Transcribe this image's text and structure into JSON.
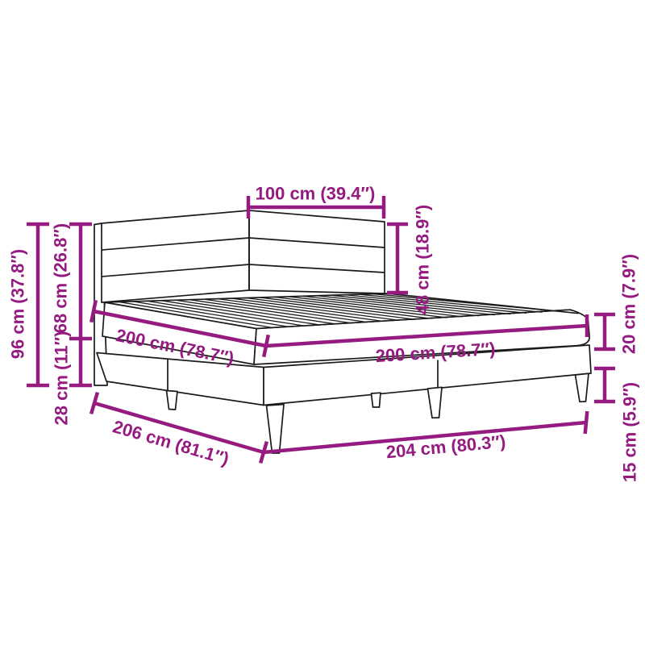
{
  "diagram": {
    "type": "product-dimension-diagram",
    "subject": "bed frame with striped headboard, slatted top and tapered legs"
  },
  "colors": {
    "dimension": "#951b81",
    "drawing": "#1a1a1a",
    "background": "#ffffff"
  },
  "dimensions": {
    "headboard_section_width": "100 cm (39.4″)",
    "headboard_drop_to_mattress": "48 cm (18.9″)",
    "total_height": "96 cm (37.8″)",
    "headboard_height": "68 cm (26.8″)",
    "base_height": "28 cm (11″)",
    "length_top": "200 cm (78.7″)",
    "width_top": "200 cm (78.7″)",
    "mattress_thickness": "20 cm (7.9″)",
    "leg_height": "15 cm (5.9″)",
    "frame_length": "206 cm (81.1″)",
    "frame_width": "204 cm (80.3″)"
  }
}
